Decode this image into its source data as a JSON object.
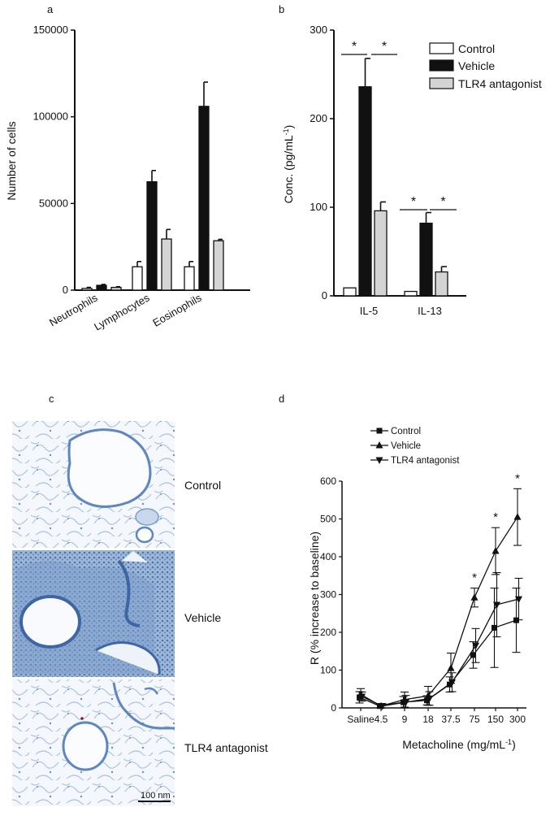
{
  "panels": {
    "a": "a",
    "b": "b",
    "c": "c",
    "d": "d"
  },
  "colors": {
    "control": "#ffffff",
    "vehicle": "#111111",
    "tlr4": "#d4d4d4",
    "tissue": "#7da3d0",
    "tissue_bg": "#eef3f9"
  },
  "histology": {
    "labels": [
      "Control",
      "Vehicle",
      "TLR4 antagonist"
    ],
    "scale_bar": "100 nm"
  },
  "chart_data": [
    {
      "type": "bar",
      "panel": "a",
      "categories": [
        "Neutrophils",
        "Lymphocytes",
        "Eosinophils"
      ],
      "series": [
        {
          "name": "Control",
          "values": [
            1000,
            13500,
            13500
          ],
          "errors": [
            600,
            3000,
            3000
          ]
        },
        {
          "name": "Vehicle",
          "values": [
            2800,
            62500,
            106000
          ],
          "errors": [
            500,
            6500,
            14000
          ]
        },
        {
          "name": "TLR4 antagonist",
          "values": [
            1600,
            29500,
            28500
          ],
          "errors": [
            400,
            5500,
            800
          ]
        }
      ],
      "ylabel": "Number of cells",
      "ylim": [
        0,
        150000
      ],
      "yticks": [
        "0",
        "50000",
        "100000",
        "150000"
      ]
    },
    {
      "type": "bar",
      "panel": "b",
      "categories": [
        "IL-5",
        "IL-13"
      ],
      "series": [
        {
          "name": "Control",
          "values": [
            9,
            5
          ],
          "errors": [
            0,
            0
          ]
        },
        {
          "name": "Vehicle",
          "values": [
            236,
            82
          ],
          "errors": [
            32,
            12
          ]
        },
        {
          "name": "TLR4 antagonist",
          "values": [
            96,
            27
          ],
          "errors": [
            10,
            6
          ]
        }
      ],
      "ylabel": "Conc. (pg/mL",
      "ylabel_sup": "-1",
      "ylabel_close": ")",
      "ylim": [
        0,
        300
      ],
      "yticks": [
        "0",
        "100",
        "200",
        "300"
      ],
      "significance": [
        "*",
        "*",
        "*",
        "*"
      ],
      "legend": [
        "Control",
        "Vehicle",
        "TLR4 antagonist"
      ],
      "legend_position": "top-right"
    },
    {
      "type": "line",
      "panel": "d",
      "x": [
        "Saline",
        "4.5",
        "9",
        "18",
        "37.5",
        "75",
        "150",
        "300"
      ],
      "series": [
        {
          "name": "Control",
          "marker": "square",
          "values": [
            28,
            5,
            15,
            20,
            62,
            140,
            212,
            232
          ],
          "errors": [
            15,
            6,
            15,
            12,
            20,
            35,
            105,
            85
          ]
        },
        {
          "name": "Vehicle",
          "marker": "triangle-up",
          "values": [
            36,
            5,
            22,
            32,
            105,
            292,
            415,
            505
          ],
          "errors": [
            15,
            6,
            20,
            25,
            40,
            25,
            62,
            75
          ]
        },
        {
          "name": "TLR4 antagonist",
          "marker": "triangle-down",
          "values": [
            30,
            5,
            15,
            25,
            68,
            165,
            273,
            288
          ],
          "errors": [
            12,
            6,
            18,
            18,
            25,
            45,
            85,
            55
          ]
        }
      ],
      "xlabel": "Metacholine (mg/mL",
      "xlabel_sup": "-1",
      "xlabel_close": ")",
      "ylabel": "R (% increase to baseline)",
      "ylim": [
        0,
        600
      ],
      "yticks": [
        "0",
        "100",
        "200",
        "300",
        "400",
        "500",
        "600"
      ],
      "significance": [
        {
          "x": "75",
          "label": "*"
        },
        {
          "x": "150",
          "label": "*"
        },
        {
          "x": "300",
          "label": "*"
        }
      ],
      "legend": [
        "Control",
        "Vehicle",
        "TLR4 antagonist"
      ],
      "legend_position": "top-left"
    }
  ]
}
